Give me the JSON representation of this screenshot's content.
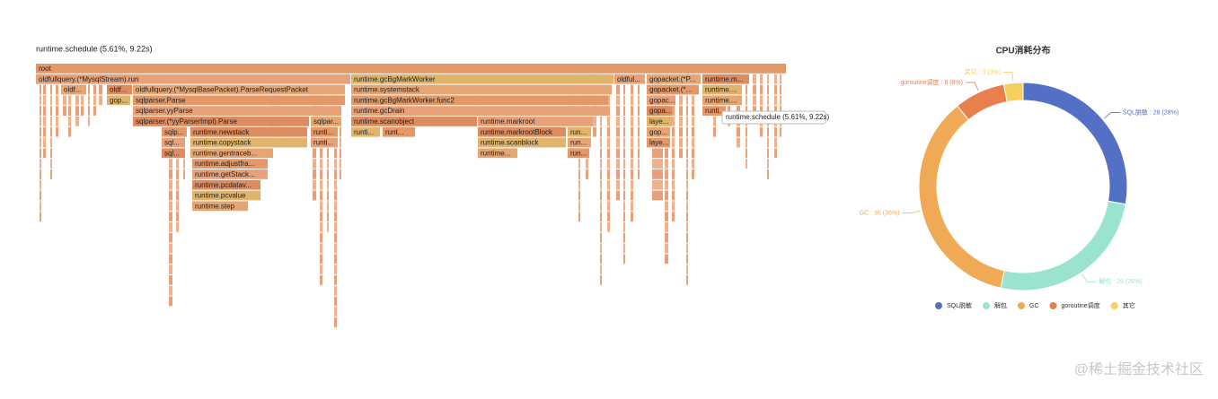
{
  "flamegraph": {
    "title": "runtime.schedule (5.61%, 9.22s)",
    "tooltip": "runtime.schedule (5.61%, 9.22s)",
    "frames": [
      "root",
      "oldfullquery.(*MysqlStream).run",
      "runtime.gcBgMarkWorker",
      "oldful...",
      "gopacket.(*P...",
      "runtime.m...",
      "oldf...",
      "oldf...",
      "oldfullquery.(*MysqlBasePacket).ParseRequestPacket",
      "runtime.systemstack",
      "gopacket.(*...",
      "runtime....",
      "gop...",
      "sqlparser.Parse",
      "runtime.gcBgMarkWorker.func2",
      "gopac...",
      "runtime....",
      "sqlparser.yyParse",
      "runtime.gcDrain",
      "gopa...",
      "runti...",
      "sqlparser.(*yyParserImpl).Parse",
      "sqlpar...",
      "runtime.scanobject",
      "runtime.markroot",
      "laye...",
      "sqlp...",
      "runtime.newstack",
      "runti...",
      "runti...",
      "runt...",
      "runtime.markrootBlock",
      "run...",
      "gop...",
      "sql...",
      "runtime.copystack",
      "runti...",
      "runtime.scanblock",
      "run...",
      "laye...",
      "sql...",
      "runtime.gentraceb...",
      "runtime...",
      "run...",
      "runtime.adjustfra...",
      "runtime.getStack...",
      "runtime.pcdatav...",
      "runtime.pcvalue",
      "runtime.step"
    ]
  },
  "chart_data": {
    "type": "donut",
    "title": "CPU消耗分布",
    "categories": [
      "SQL脱敏",
      "解包",
      "GC",
      "goroutine调度",
      "其它"
    ],
    "values": [
      28,
      26,
      36,
      8,
      3
    ],
    "value_labels": [
      "SQL脱敏 : 28 (28%)",
      "解包 : 26 (26%)",
      "GC : 36 (36%)",
      "goroutine调度 : 8 (8%)",
      "其它 : 3 (3%)"
    ],
    "colors": [
      "#5470c6",
      "#9ae3cf",
      "#f0aa55",
      "#e8804d",
      "#f7cf5e"
    ]
  },
  "watermark": "@稀土掘金技术社区"
}
